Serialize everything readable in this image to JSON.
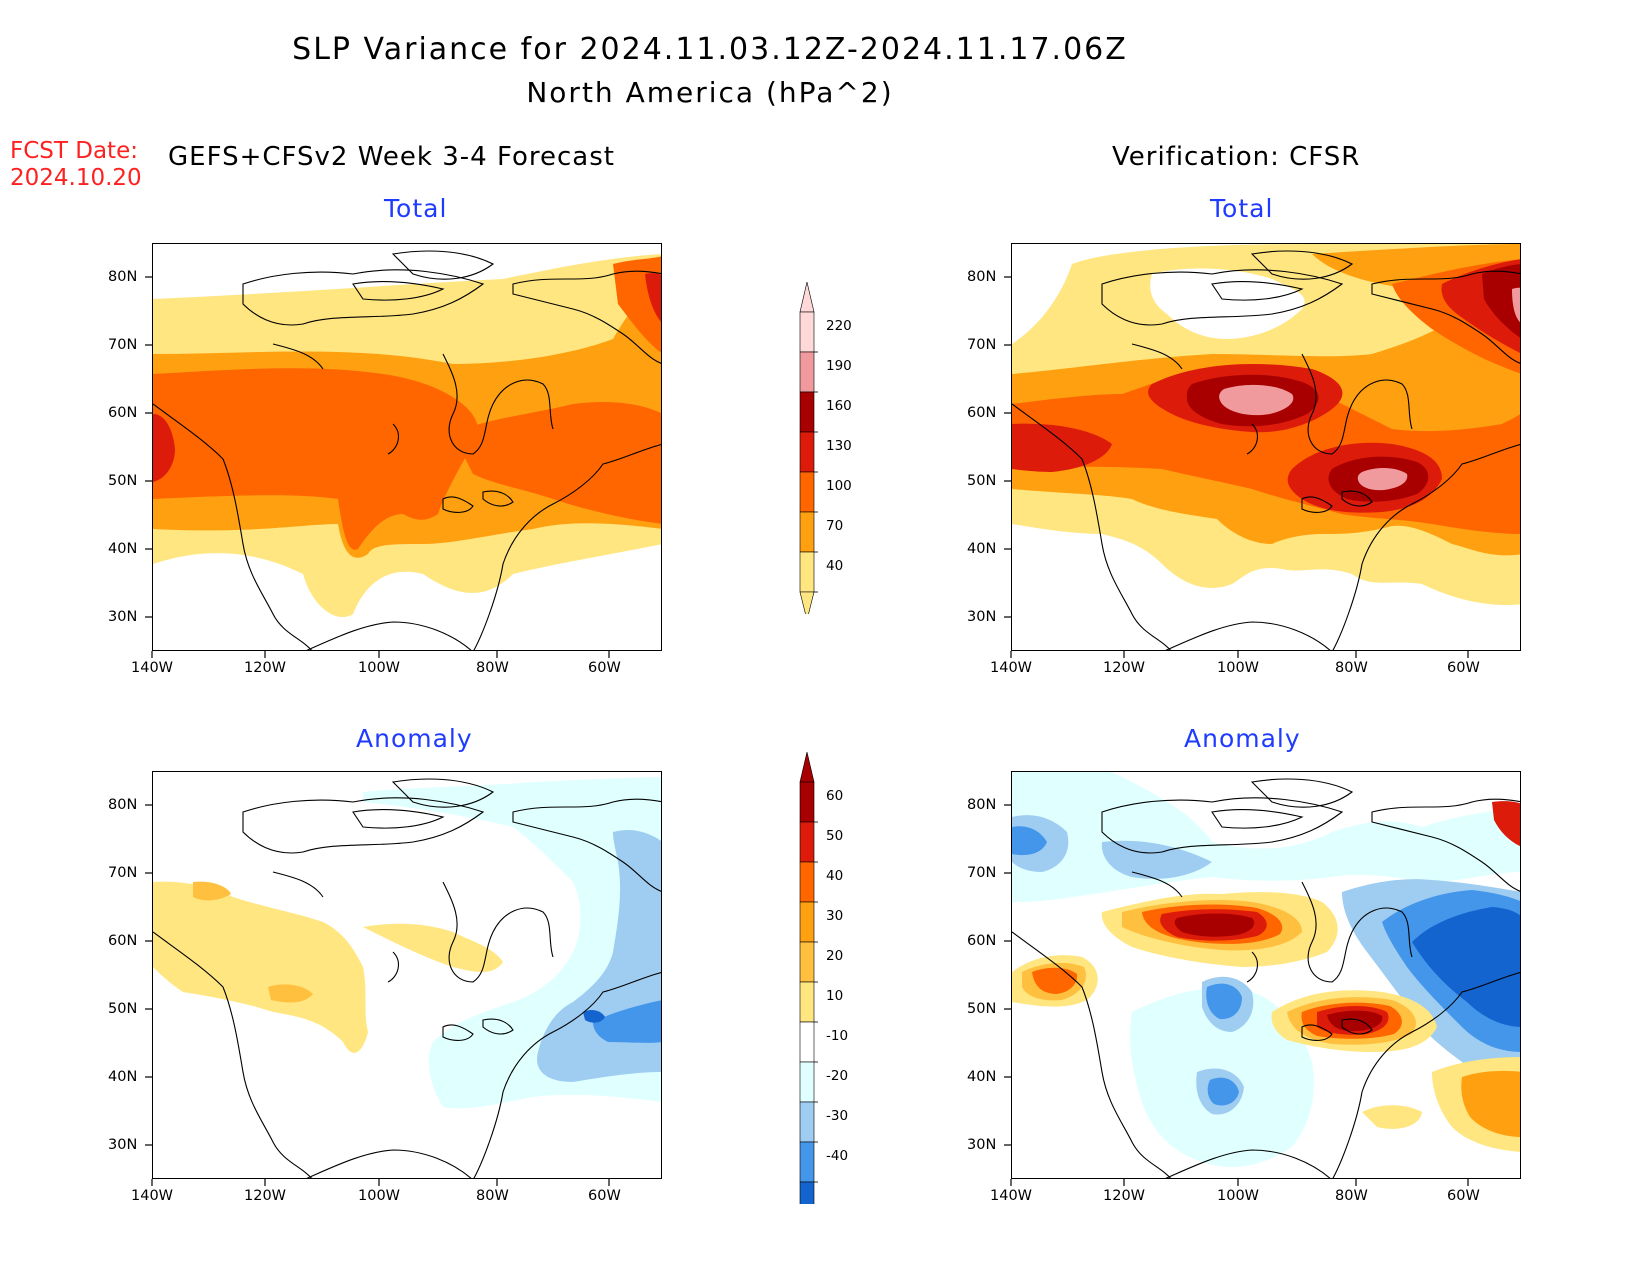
{
  "header": {
    "title": "SLP Variance for 2024.11.03.12Z-2024.11.17.06Z",
    "subtitle": "North America (hPa^2)",
    "fcst_label": "FCST Date:",
    "fcst_date": "2024.10.20",
    "left_heading": "GEFS+CFSv2 Week 3-4 Forecast",
    "right_heading": "Verification: CFSR"
  },
  "panels": {
    "fc_total": {
      "title": "Total"
    },
    "vf_total": {
      "title": "Total"
    },
    "fc_anom": {
      "title": "Anomaly"
    },
    "vf_anom": {
      "title": "Anomaly"
    }
  },
  "axes": {
    "lon_labels": [
      "140W",
      "120W",
      "100W",
      "80W",
      "60W"
    ],
    "lat_labels": [
      "80N",
      "70N",
      "60N",
      "50N",
      "40N",
      "30N"
    ]
  },
  "colorbars": {
    "total": {
      "levels": [
        "220",
        "190",
        "160",
        "130",
        "100",
        "70",
        "40"
      ],
      "colors": [
        "#ffd8d8",
        "#f19a9e",
        "#a80000",
        "#dd1b0a",
        "#ff6600",
        "#ffa010",
        "#ffe680"
      ]
    },
    "anomaly": {
      "levels": [
        "60",
        "50",
        "40",
        "30",
        "20",
        "10",
        "-10",
        "-20",
        "-30",
        "-40"
      ],
      "colors": [
        "#a80000",
        "#dd1b0a",
        "#ff6600",
        "#ffa010",
        "#ffc040",
        "#ffe680",
        "#ffffff",
        "#e0ffff",
        "#9fcdf2",
        "#4496ea",
        "#1464d0"
      ]
    }
  }
}
